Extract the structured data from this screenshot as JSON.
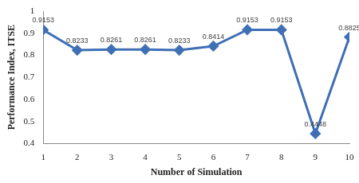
{
  "chart_data": {
    "type": "line",
    "x_label": "Number of Simulation",
    "y_label": "Performance Index, ITSE",
    "categories": [
      "1",
      "2",
      "3",
      "4",
      "5",
      "6",
      "7",
      "8",
      "9",
      "10"
    ],
    "values": [
      0.9153,
      0.8233,
      0.8261,
      0.8261,
      0.8233,
      0.8414,
      0.9153,
      0.9153,
      0.4448,
      0.8825
    ],
    "color": "#3f6fb5",
    "marker": "diamond",
    "ylim": [
      0.4,
      1
    ],
    "yticks": [
      0.4,
      0.5,
      0.6,
      0.7,
      0.8,
      0.9,
      1
    ],
    "grid": false,
    "data_labels": true
  }
}
